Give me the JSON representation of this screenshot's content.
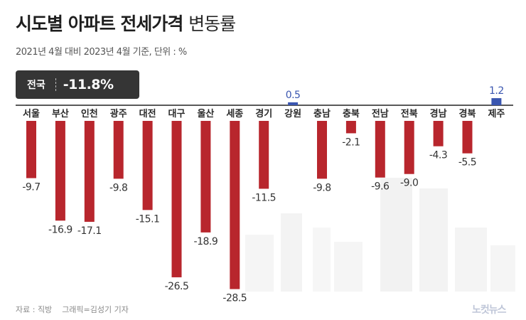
{
  "title": {
    "bold": "시도별 아파트 전세가격",
    "light": "변동률"
  },
  "subtitle": "2021년 4월 대비 2023년 4월 기준, 단위 : %",
  "national": {
    "label": "전국",
    "value": "-11.8%"
  },
  "footer": {
    "source": "자료 : 직방",
    "graphic": "그래픽=김성기 기자"
  },
  "logo": "노컷뉴스",
  "colors": {
    "negative": "#b8262d",
    "positive": "#3a56b0",
    "label": "#333333",
    "axis": "#222222"
  },
  "chart_data": {
    "type": "bar",
    "title": "시도별 아파트 전세가격 변동률",
    "unit": "%",
    "categories": [
      "서울",
      "부산",
      "인천",
      "광주",
      "대전",
      "대구",
      "울산",
      "세종",
      "경기",
      "강원",
      "충남",
      "충북",
      "전남",
      "전북",
      "경남",
      "경북",
      "제주"
    ],
    "values": [
      -9.7,
      -16.9,
      -17.1,
      -9.8,
      -15.1,
      -26.5,
      -18.9,
      -28.5,
      -11.5,
      0.5,
      -9.8,
      -2.1,
      -9.6,
      -9.0,
      -4.3,
      -5.5,
      1.2
    ],
    "value_labels": [
      "-9.7",
      "-16.9",
      "-17.1",
      "-9.8",
      "-15.1",
      "-26.5",
      "-18.9",
      "-28.5",
      "-11.5",
      "0.5",
      "-9.8",
      "-2.1",
      "-9.6",
      "-9.0",
      "-4.3",
      "-5.5",
      "1.2"
    ],
    "ylim": [
      -30,
      2
    ],
    "legend": "none",
    "grid": false
  }
}
